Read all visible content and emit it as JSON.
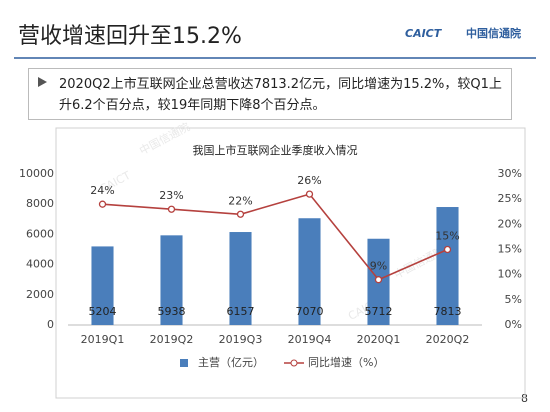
{
  "slide": {
    "title": "营收增速回升至15.2%",
    "bullet": "2020Q2上市互联网企业总营收达7813.2亿元，同比增速为15.2%，较Q1上升6.2个百分点，较19年同期下降8个百分点。",
    "page_number": "8"
  },
  "logo": {
    "brand": "CAICT",
    "name": "中国信通院"
  },
  "chart_data": {
    "type": "bar_line",
    "title": "我国上市互联网企业季度收入情况",
    "categories": [
      "2019Q1",
      "2019Q2",
      "2019Q3",
      "2019Q4",
      "2020Q1",
      "2020Q2"
    ],
    "series": [
      {
        "name": "主营（亿元）",
        "type": "bar",
        "color": "#4a7ebb",
        "values": [
          5204,
          5938,
          6157,
          7070,
          5712,
          7813
        ]
      },
      {
        "name": "同比增速（%）",
        "type": "line",
        "axis": "y2",
        "color": "#b5413e",
        "values": [
          24,
          23,
          22,
          26,
          9,
          15
        ],
        "value_labels": [
          "24%",
          "23%",
          "22%",
          "26%",
          "9%",
          "15%"
        ]
      }
    ],
    "ylim": [
      0,
      10000
    ],
    "yticks": [
      0,
      2000,
      4000,
      6000,
      8000,
      10000
    ],
    "y2lim": [
      0,
      30
    ],
    "y2ticks": [
      {
        "value": 0,
        "label": "0%"
      },
      {
        "value": 5,
        "label": "5%"
      },
      {
        "value": 10,
        "label": "10%"
      },
      {
        "value": 15,
        "label": "15%"
      },
      {
        "value": 20,
        "label": "20%"
      },
      {
        "value": 25,
        "label": "25%"
      },
      {
        "value": 30,
        "label": "30%"
      }
    ],
    "grid": false,
    "legend": "bottom"
  }
}
